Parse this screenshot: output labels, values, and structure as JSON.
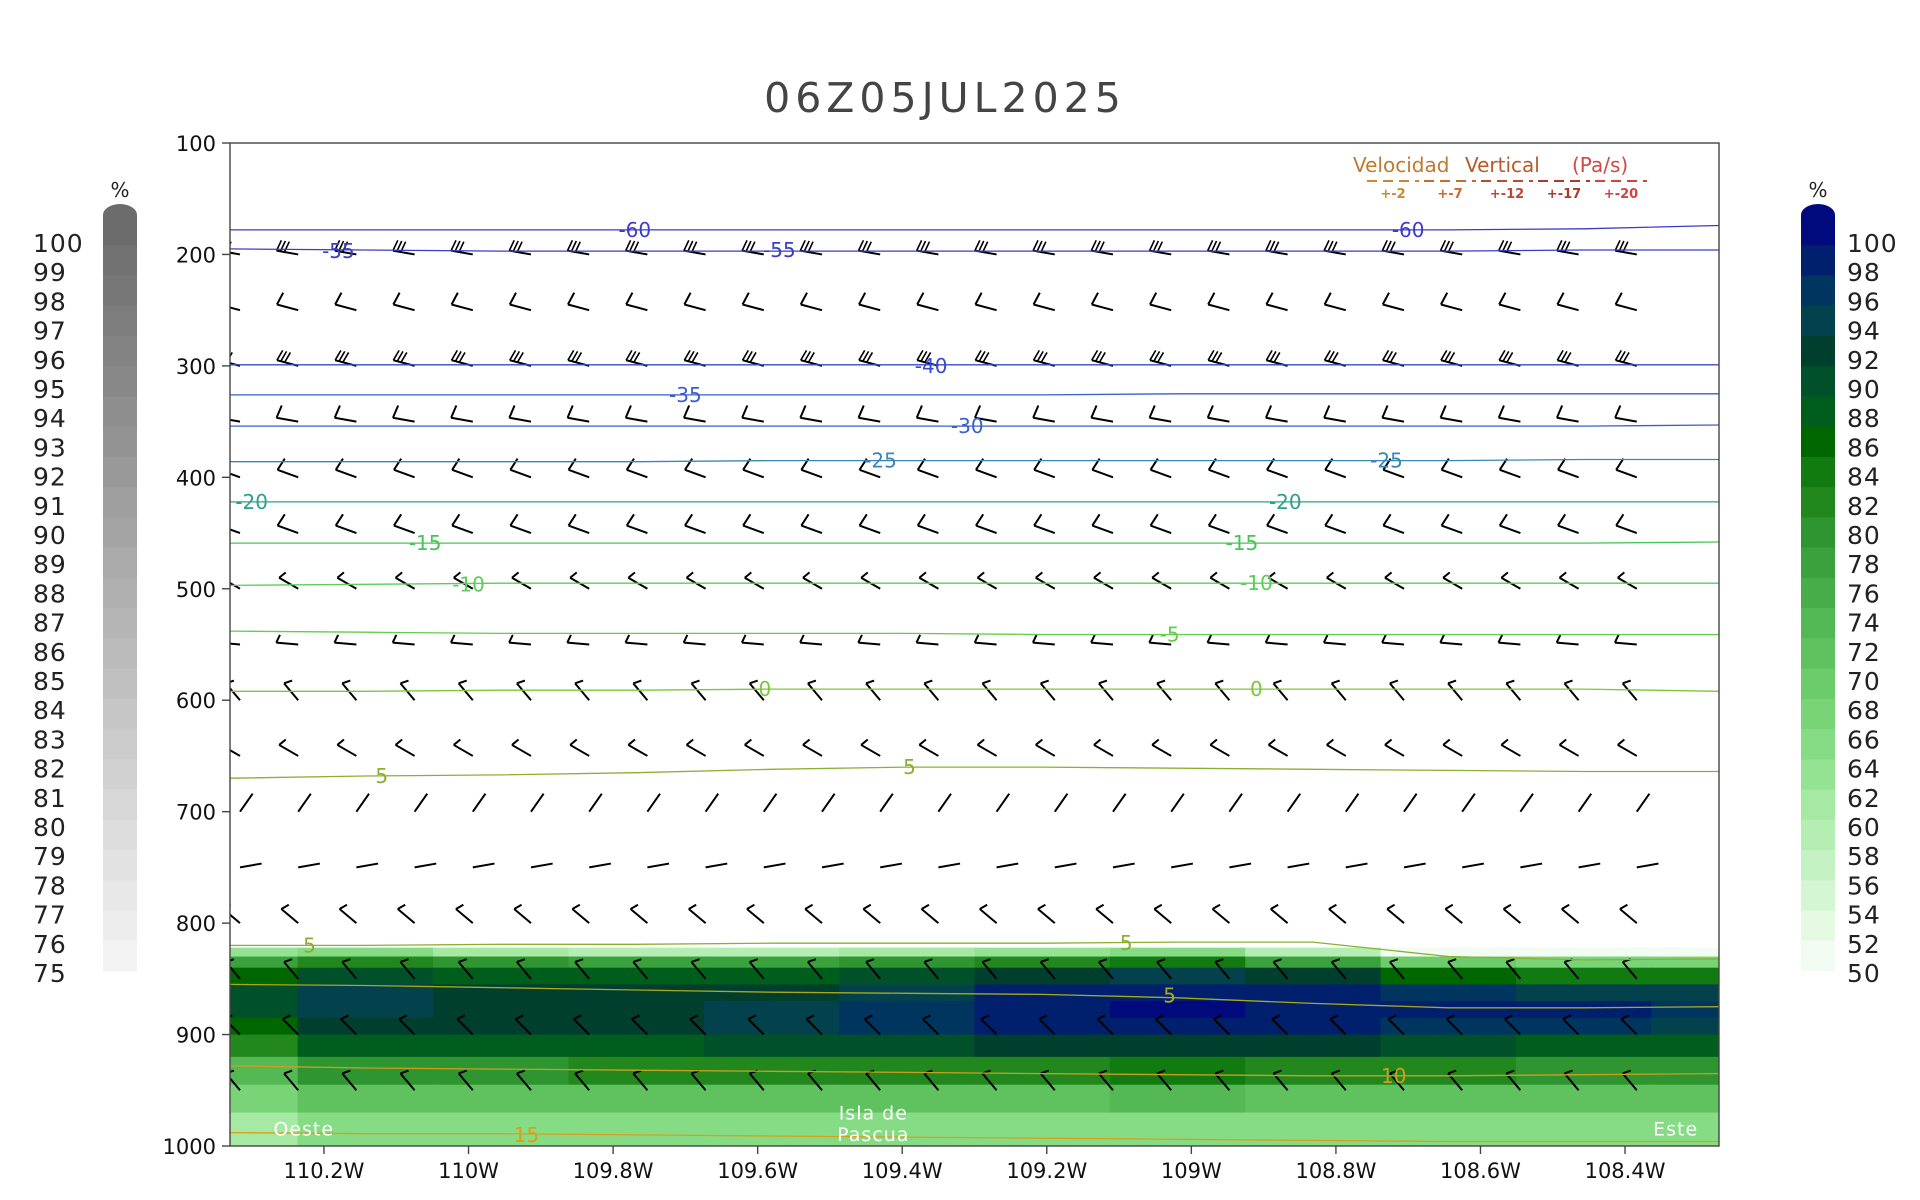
{
  "chart_data": {
    "type": "contour",
    "title": "06Z05JUL2025",
    "x_ticks": [
      "110.2W",
      "110W",
      "109.8W",
      "109.6W",
      "109.4W",
      "109.2W",
      "109W",
      "108.8W",
      "108.6W",
      "108.4W"
    ],
    "x_tick_values": [
      -110.2,
      -110.0,
      -109.8,
      -109.6,
      -109.4,
      -109.2,
      -109.0,
      -108.8,
      -108.6,
      -108.4
    ],
    "xlim": [
      -110.33,
      -108.27
    ],
    "y_ticks": [
      "100",
      "200",
      "300",
      "400",
      "500",
      "600",
      "700",
      "800",
      "900",
      "1000"
    ],
    "y_tick_values": [
      100,
      200,
      300,
      400,
      500,
      600,
      700,
      800,
      900,
      1000
    ],
    "ylim": [
      100,
      1000
    ],
    "y_inverted": true,
    "grid": false,
    "left_colorbar": {
      "unit": "%",
      "labels": [
        "100",
        "99",
        "98",
        "97",
        "96",
        "95",
        "94",
        "93",
        "92",
        "91",
        "90",
        "89",
        "88",
        "87",
        "86",
        "85",
        "84",
        "83",
        "82",
        "81",
        "80",
        "79",
        "78",
        "77",
        "76",
        "75"
      ],
      "color_top": "#6c6c6c",
      "color_bottom": "#f3f3f3"
    },
    "right_colorbar": {
      "unit": "%",
      "labels": [
        "100",
        "98",
        "96",
        "94",
        "92",
        "90",
        "88",
        "86",
        "84",
        "82",
        "80",
        "78",
        "76",
        "74",
        "72",
        "70",
        "68",
        "66",
        "64",
        "62",
        "60",
        "58",
        "56",
        "54",
        "52",
        "50"
      ],
      "colors": [
        "#000a7c",
        "#00206e",
        "#003560",
        "#03424c",
        "#003e2e",
        "#00512a",
        "#005e1c",
        "#006600",
        "#117a11",
        "#22881e",
        "#2f9530",
        "#3ba13c",
        "#48ad48",
        "#54b954",
        "#5fc25e",
        "#6ccb6b",
        "#78d477",
        "#86dc85",
        "#94e393",
        "#a5e9a3",
        "#b5eeb3",
        "#c5f2c3",
        "#d5f6d3",
        "#e5f9e3",
        "#f3fcf2"
      ]
    },
    "legend": {
      "title_words": [
        "Velocidad",
        "Vertical",
        "(Pa/s)"
      ],
      "title_colors": [
        "#c07a30",
        "#b85a28",
        "#d04848"
      ],
      "entries": [
        "+-2",
        "+-7",
        "+-12",
        "+-17",
        "+-20"
      ],
      "entry_colors": [
        "#d08830",
        "#c86a2a",
        "#b84838",
        "#a83a30",
        "#d84040"
      ],
      "placement": "top-right"
    },
    "temperature_contours": [
      {
        "value": -60,
        "label": "-60",
        "color": "#3c3cc8",
        "pressures": [
          178,
          178,
          178,
          178,
          178,
          178,
          178,
          178,
          178,
          178,
          177,
          174
        ],
        "labels_at": [
          [
            -109.77,
            178
          ],
          [
            -108.7,
            178
          ]
        ]
      },
      {
        "value": -55,
        "label": "-55",
        "color": "#3c3cc8",
        "pressures": [
          195,
          196,
          197,
          197,
          197,
          197,
          197,
          197,
          197,
          197,
          196,
          196
        ],
        "labels_at": [
          [
            -110.18,
            197
          ],
          [
            -109.57,
            196
          ]
        ]
      },
      {
        "value": -40,
        "label": "-40",
        "color": "#3a4ad0",
        "pressures": [
          299,
          299,
          299,
          299,
          299,
          299,
          299,
          299,
          299,
          299,
          299,
          299
        ],
        "labels_at": [
          [
            -109.36,
            300
          ]
        ]
      },
      {
        "value": -35,
        "label": "-35",
        "color": "#3a5ed0",
        "pressures": [
          326,
          326,
          326,
          326,
          326,
          326,
          326,
          325,
          325,
          325,
          325,
          325
        ],
        "labels_at": [
          [
            -109.7,
            326
          ]
        ]
      },
      {
        "value": -30,
        "label": "-30",
        "color": "#3a62c8",
        "pressures": [
          354,
          354,
          354,
          354,
          354,
          354,
          354,
          354,
          354,
          354,
          354,
          353
        ],
        "labels_at": [
          [
            -109.31,
            354
          ]
        ]
      },
      {
        "value": -25,
        "label": "-25",
        "color": "#3a86b8",
        "pressures": [
          386,
          386,
          386,
          386,
          385,
          385,
          385,
          385,
          385,
          385,
          384,
          384
        ],
        "labels_at": [
          [
            -109.43,
            385
          ],
          [
            -108.73,
            385
          ]
        ]
      },
      {
        "value": -20,
        "label": "-20",
        "color": "#2ea088",
        "pressures": [
          422,
          422,
          422,
          422,
          422,
          422,
          422,
          422,
          422,
          422,
          422,
          422
        ],
        "labels_at": [
          [
            -110.3,
            422
          ],
          [
            -108.87,
            422
          ]
        ]
      },
      {
        "value": -15,
        "label": "-15",
        "color": "#46c456",
        "pressures": [
          459,
          459,
          459,
          459,
          459,
          459,
          459,
          459,
          459,
          459,
          459,
          458
        ],
        "labels_at": [
          [
            -110.06,
            459
          ],
          [
            -108.93,
            459
          ]
        ]
      },
      {
        "value": -10,
        "label": "-10",
        "color": "#58d058",
        "pressures": [
          497,
          496,
          495,
          495,
          495,
          495,
          495,
          495,
          495,
          495,
          495,
          495
        ],
        "labels_at": [
          [
            -110.0,
            496
          ],
          [
            -108.91,
            495
          ]
        ]
      },
      {
        "value": -5,
        "label": "-5",
        "color": "#64cc48",
        "pressures": [
          538,
          539,
          540,
          540,
          540,
          540,
          541,
          541,
          541,
          541,
          541,
          541
        ],
        "labels_at": [
          [
            -109.03,
            541
          ]
        ]
      },
      {
        "value": 0,
        "label": "0",
        "color": "#7ac838",
        "pressures": [
          592,
          592,
          591,
          591,
          590,
          590,
          590,
          590,
          590,
          590,
          590,
          592
        ],
        "labels_at": [
          [
            -109.59,
            590
          ],
          [
            -108.91,
            590
          ]
        ]
      },
      {
        "value": 5,
        "label": "5",
        "color": "#8ab030",
        "pressures": [
          670,
          668,
          667,
          665,
          662,
          660,
          660,
          661,
          662,
          663,
          664,
          664
        ],
        "labels_at": [
          [
            -110.12,
            668
          ],
          [
            -109.39,
            660
          ]
        ]
      },
      {
        "value": 5,
        "label": "5",
        "color": "#8ab030",
        "pressures": [
          820,
          820,
          819,
          819,
          818,
          818,
          818,
          817,
          817,
          830,
          833,
          832
        ],
        "labels_at": [
          [
            -110.22,
            820
          ],
          [
            -109.09,
            818
          ]
        ]
      },
      {
        "value": 5,
        "label": "5",
        "color": "#a8a820",
        "pressures": [
          855,
          856,
          858,
          860,
          862,
          863,
          864,
          867,
          872,
          876,
          876,
          875
        ],
        "labels_at": [
          [
            -109.03,
            865
          ]
        ]
      },
      {
        "value": 10,
        "label": "10",
        "color": "#c8a020",
        "pressures": [
          928,
          930,
          931,
          932,
          933,
          934,
          935,
          936,
          937,
          937,
          936,
          935
        ],
        "labels_at": [
          [
            -108.72,
            937
          ]
        ]
      },
      {
        "value": 15,
        "label": "15",
        "color": "#d8a018",
        "pressures": [
          988,
          989,
          989,
          990,
          991,
          992,
          993,
          994,
          995,
          996,
          996,
          996
        ],
        "labels_at": [
          [
            -109.92,
            990
          ]
        ]
      }
    ],
    "annotations": [
      {
        "text": "Oeste",
        "x": -110.27,
        "p": 985
      },
      {
        "text": "Isla de",
        "x": -109.44,
        "p": 971
      },
      {
        "text": "Pascua",
        "x": -109.44,
        "p": 990
      },
      {
        "text": "Este",
        "x": -108.33,
        "p": 985
      }
    ],
    "humidity_field": [
      {
        "p": 815,
        "values": [
          0,
          0,
          0,
          0,
          0,
          0,
          0,
          0,
          0,
          0,
          0,
          0
        ]
      },
      {
        "p": 822,
        "values": [
          55,
          55,
          50,
          50,
          50,
          50,
          52,
          52,
          50,
          45,
          45,
          45
        ]
      },
      {
        "p": 830,
        "values": [
          72,
          75,
          72,
          70,
          70,
          72,
          76,
          78,
          70,
          58,
          56,
          56
        ]
      },
      {
        "p": 840,
        "values": [
          84,
          88,
          86,
          84,
          84,
          86,
          88,
          90,
          86,
          80,
          78,
          78
        ]
      },
      {
        "p": 855,
        "values": [
          88,
          92,
          90,
          90,
          90,
          92,
          95,
          97,
          95,
          92,
          90,
          90
        ]
      },
      {
        "p": 870,
        "values": [
          90,
          93,
          92,
          92,
          93,
          95,
          98,
          99,
          98,
          97,
          96,
          96
        ]
      },
      {
        "p": 885,
        "values": [
          88,
          92,
          92,
          92,
          94,
          96,
          98,
          99,
          98,
          97,
          97,
          96
        ]
      },
      {
        "p": 900,
        "values": [
          84,
          90,
          90,
          90,
          92,
          94,
          95,
          96,
          95,
          93,
          92,
          92
        ]
      },
      {
        "p": 920,
        "values": [
          78,
          84,
          84,
          85,
          86,
          86,
          86,
          88,
          86,
          85,
          84,
          84
        ]
      },
      {
        "p": 945,
        "values": [
          70,
          76,
          76,
          76,
          76,
          76,
          76,
          78,
          76,
          76,
          75,
          75
        ]
      },
      {
        "p": 970,
        "values": [
          64,
          68,
          68,
          68,
          68,
          68,
          68,
          68,
          68,
          68,
          68,
          68
        ]
      },
      {
        "p": 1000,
        "values": [
          58,
          62,
          62,
          62,
          62,
          62,
          62,
          62,
          62,
          62,
          62,
          62
        ]
      }
    ],
    "wind_levels": [
      {
        "p": 200,
        "dir": 280,
        "barb": "pennants"
      },
      {
        "p": 250,
        "dir": 285,
        "barb": "long"
      },
      {
        "p": 300,
        "dir": 285,
        "barb": "pennants"
      },
      {
        "p": 350,
        "dir": 280,
        "barb": "long"
      },
      {
        "p": 400,
        "dir": 290,
        "barb": "long"
      },
      {
        "p": 450,
        "dir": 290,
        "barb": "long"
      },
      {
        "p": 500,
        "dir": 300,
        "barb": "short"
      },
      {
        "p": 550,
        "dir": 275,
        "barb": "short"
      },
      {
        "p": 600,
        "dir": 320,
        "barb": "short"
      },
      {
        "p": 650,
        "dir": 300,
        "barb": "short"
      },
      {
        "p": 700,
        "dir": 35,
        "barb": "none"
      },
      {
        "p": 750,
        "dir": 80,
        "barb": "none"
      },
      {
        "p": 800,
        "dir": 310,
        "barb": "short"
      },
      {
        "p": 850,
        "dir": 320,
        "barb": "short"
      },
      {
        "p": 900,
        "dir": 315,
        "barb": "short"
      },
      {
        "p": 950,
        "dir": 320,
        "barb": "short"
      }
    ]
  }
}
